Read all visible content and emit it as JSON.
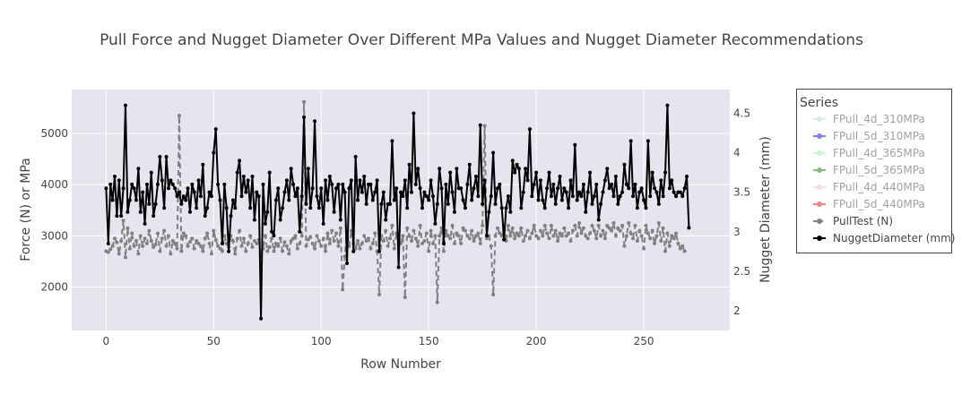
{
  "chart_data": {
    "type": "line",
    "title": "Pull Force and Nugget Diameter Over Different MPa Values and Nugget Diameter Recommendations",
    "xlabel": "Row Number",
    "ylabel_left": "Force (N) or MPa",
    "ylabel_right": "Nugget Diameter (mm)",
    "xlim": [
      -16,
      290
    ],
    "ylim_left": [
      1150,
      5860
    ],
    "ylim_right": [
      1.75,
      4.8
    ],
    "x_ticks": [
      0,
      50,
      100,
      150,
      200,
      250
    ],
    "y_ticks_left": [
      2000,
      3000,
      4000,
      5000
    ],
    "y_ticks_right": [
      2,
      2.5,
      3,
      3.5,
      4,
      4.5
    ],
    "grid": true,
    "legend": {
      "title": "Series",
      "position": "right",
      "entries": [
        {
          "name": "FPull_4d_310MPa",
          "color": "#add8e6",
          "style": "line-marker",
          "visible": false
        },
        {
          "name": "FPull_5d_310MPa",
          "color": "#0000ff",
          "style": "line-marker",
          "visible": false
        },
        {
          "name": "FPull_4d_365MPa",
          "color": "#90ee90",
          "style": "line-marker",
          "visible": false
        },
        {
          "name": "FPull_5d_365MPa",
          "color": "#008000",
          "style": "line-marker",
          "visible": false
        },
        {
          "name": "FPull_4d_440MPa",
          "color": "#ffb6c1",
          "style": "line-marker",
          "visible": false
        },
        {
          "name": "FPull_5d_440MPa",
          "color": "#ff0000",
          "style": "line-marker",
          "visible": false
        },
        {
          "name": "PullTest (N)",
          "color": "#808080",
          "style": "dash-marker",
          "visible": true
        },
        {
          "name": "NuggetDiameter (mm)",
          "color": "#000000",
          "style": "line-marker",
          "visible": true
        }
      ]
    },
    "series": [
      {
        "name": "PullTest (N)",
        "axis": "left",
        "color": "#808080",
        "dash": true,
        "x_start": 0,
        "x_step": 1,
        "values": [
          2700,
          2680,
          2740,
          2800,
          2950,
          2870,
          2650,
          2900,
          3300,
          2580,
          3150,
          2750,
          3050,
          2800,
          2900,
          2650,
          3000,
          2800,
          2950,
          2850,
          3100,
          2900,
          2780,
          2830,
          3050,
          2700,
          2950,
          3100,
          2800,
          3000,
          2650,
          2900,
          2850,
          2750,
          5350,
          2700,
          3050,
          3000,
          2800,
          2880,
          2950,
          2750,
          2900,
          2850,
          2800,
          2700,
          2950,
          3050,
          2850,
          2650,
          3100,
          2920,
          2800,
          2750,
          2700,
          3000,
          2850,
          2780,
          3000,
          2900,
          2650,
          2950,
          3100,
          2800,
          2950,
          2700,
          2850,
          3000,
          2780,
          2900,
          2850,
          2920,
          2600,
          2750,
          3000,
          2700,
          2780,
          2950,
          2700,
          2850,
          2800,
          2950,
          2700,
          2880,
          2800,
          2650,
          2900,
          2950,
          3000,
          2750,
          2850,
          3000,
          5620,
          2800,
          2930,
          2980,
          2850,
          2750,
          3000,
          2900,
          2800,
          2950,
          2700,
          3050,
          2850,
          3100,
          2900,
          3050,
          2800,
          3150,
          1950,
          2600,
          3100,
          2800,
          3100,
          2850,
          2750,
          2900,
          2750,
          2850,
          3000,
          2900,
          2950,
          2750,
          2850,
          3050,
          2700,
          1850,
          3000,
          2900,
          3100,
          2800,
          2950,
          3200,
          2750,
          3050,
          2950,
          2850,
          3000,
          1800,
          3150,
          3000,
          2900,
          3100,
          2950,
          2800,
          3200,
          2850,
          2900,
          3050,
          2700,
          3100,
          2850,
          3000,
          1700,
          3000,
          3150,
          2700,
          3100,
          3000,
          2950,
          3200,
          2850,
          3050,
          3000,
          2850,
          3150,
          3100,
          3000,
          2950,
          3100,
          2900,
          3000,
          3050,
          2850,
          3200,
          5150,
          2950,
          3000,
          2800,
          1850,
          3000,
          3150,
          3050,
          3000,
          3100,
          2900,
          3200,
          3000,
          3150,
          2950,
          3050,
          3000,
          3150,
          2900,
          3000,
          3100,
          2950,
          3050,
          3200,
          3000,
          2950,
          3100,
          3000,
          3200,
          3050,
          2950,
          3200,
          3000,
          3100,
          2900,
          3050,
          3000,
          3150,
          3000,
          3050,
          2900,
          3100,
          3200,
          3000,
          3250,
          3050,
          3150,
          3000,
          2950,
          3050,
          3200,
          3100,
          2950,
          3200,
          3000,
          3100,
          2950,
          3200,
          3150,
          3100,
          3250,
          3000,
          3150,
          3100,
          3200,
          2800,
          3000,
          3250,
          3050,
          2950,
          3200,
          2900,
          3100,
          3000,
          2750,
          3200,
          3050,
          2950,
          3100,
          2850,
          3000,
          3250,
          2900,
          3150,
          2700,
          3050,
          2800,
          3000,
          2950,
          3050,
          2850,
          2750,
          2800,
          2700
        ]
      },
      {
        "name": "NuggetDiameter (mm)",
        "axis": "right",
        "color": "#000000",
        "dash": false,
        "x_start": 0,
        "x_step": 1,
        "values": [
          3.55,
          2.85,
          3.6,
          3.4,
          3.7,
          3.2,
          3.65,
          3.2,
          3.55,
          4.6,
          3.25,
          3.4,
          3.6,
          3.55,
          3.4,
          3.8,
          3.25,
          3.5,
          3.1,
          3.6,
          3.35,
          3.75,
          3.2,
          3.35,
          3.6,
          3.95,
          3.65,
          3.3,
          3.95,
          3.55,
          3.65,
          3.6,
          3.55,
          3.45,
          3.5,
          3.35,
          3.45,
          3.4,
          3.55,
          3.25,
          3.6,
          3.5,
          3.3,
          3.65,
          3.45,
          3.85,
          3.2,
          3.3,
          3.5,
          3.45,
          4.0,
          4.3,
          3.6,
          3.4,
          2.85,
          3.6,
          3.3,
          2.75,
          3.2,
          3.4,
          3.3,
          3.75,
          3.9,
          3.45,
          3.7,
          3.5,
          3.65,
          3.3,
          3.7,
          3.15,
          3.5,
          3.45,
          1.9,
          3.6,
          3.1,
          3.25,
          3.75,
          3.0,
          2.95,
          3.4,
          3.55,
          3.15,
          3.3,
          3.5,
          3.65,
          3.4,
          3.8,
          3.6,
          3.45,
          3.55,
          3.0,
          3.45,
          4.45,
          3.35,
          3.8,
          3.3,
          3.55,
          4.4,
          3.45,
          3.3,
          3.55,
          3.1,
          3.65,
          3.4,
          3.7,
          3.6,
          3.25,
          3.55,
          3.6,
          3.15,
          3.6,
          3.5,
          2.6,
          3.55,
          3.65,
          2.75,
          3.95,
          3.4,
          3.65,
          3.5,
          3.7,
          3.35,
          3.6,
          3.6,
          3.4,
          3.5,
          3.65,
          2.75,
          3.35,
          3.5,
          3.15,
          3.35,
          3.35,
          4.15,
          3.4,
          3.55,
          2.55,
          3.5,
          3.45,
          3.65,
          3.3,
          3.85,
          3.5,
          4.5,
          3.6,
          3.8,
          3.55,
          3.3,
          3.5,
          3.45,
          3.4,
          3.65,
          3.45,
          3.1,
          3.35,
          3.8,
          3.55,
          2.85,
          3.6,
          3.35,
          3.75,
          3.5,
          3.25,
          3.8,
          3.55,
          3.55,
          3.4,
          3.3,
          3.6,
          3.85,
          3.4,
          3.55,
          3.7,
          3.45,
          4.35,
          3.35,
          3.65,
          2.95,
          3.25,
          3.45,
          4.0,
          3.35,
          3.55,
          3.6,
          3.3,
          2.9,
          3.3,
          3.45,
          3.25,
          3.9,
          3.75,
          3.85,
          3.8,
          3.3,
          3.5,
          3.8,
          3.65,
          4.3,
          3.45,
          3.6,
          3.75,
          3.4,
          3.65,
          3.4,
          3.3,
          3.55,
          3.75,
          3.45,
          3.6,
          3.35,
          3.55,
          3.7,
          3.4,
          3.55,
          3.5,
          3.3,
          3.65,
          3.45,
          4.1,
          3.4,
          3.5,
          3.45,
          3.6,
          3.25,
          3.5,
          3.75,
          3.35,
          3.45,
          3.6,
          3.15,
          3.35,
          3.5,
          3.65,
          3.8,
          3.55,
          3.6,
          3.45,
          3.7,
          3.35,
          3.45,
          3.5,
          3.85,
          3.6,
          3.55,
          4.15,
          3.45,
          3.6,
          3.3,
          3.5,
          3.55,
          3.4,
          3.3,
          4.15,
          3.45,
          3.75,
          3.55,
          3.5,
          3.35,
          3.65,
          3.45,
          3.75,
          4.6,
          3.55,
          3.65,
          3.5,
          3.45,
          3.5,
          3.5,
          3.45,
          3.55,
          3.7,
          3.05
        ]
      }
    ]
  }
}
